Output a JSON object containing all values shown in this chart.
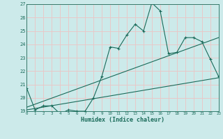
{
  "xlabel": "Humidex (Indice chaleur)",
  "background_color": "#cceaea",
  "grid_color": "#e8c8c8",
  "line_color": "#1a6b5a",
  "xlim": [
    0,
    23
  ],
  "ylim": [
    19,
    27
  ],
  "yticks": [
    19,
    20,
    21,
    22,
    23,
    24,
    25,
    26,
    27
  ],
  "xticks": [
    0,
    1,
    2,
    3,
    4,
    5,
    6,
    7,
    8,
    9,
    10,
    11,
    12,
    13,
    14,
    15,
    16,
    17,
    18,
    19,
    20,
    21,
    22,
    23
  ],
  "line1_x": [
    0,
    1,
    2,
    3,
    4,
    5,
    6,
    7,
    8,
    9,
    10,
    11,
    12,
    13,
    14,
    15,
    16,
    17,
    18,
    19,
    20,
    21,
    22,
    23
  ],
  "line1_y": [
    20.7,
    19.1,
    19.4,
    19.4,
    18.8,
    19.1,
    19.0,
    19.0,
    20.0,
    21.6,
    23.8,
    23.7,
    24.7,
    25.5,
    25.0,
    27.1,
    26.5,
    23.3,
    23.4,
    24.5,
    24.5,
    24.2,
    22.9,
    21.6
  ],
  "line2_x": [
    0,
    23
  ],
  "line2_y": [
    19.3,
    24.5
  ],
  "line3_x": [
    0,
    23
  ],
  "line3_y": [
    19.1,
    21.5
  ]
}
